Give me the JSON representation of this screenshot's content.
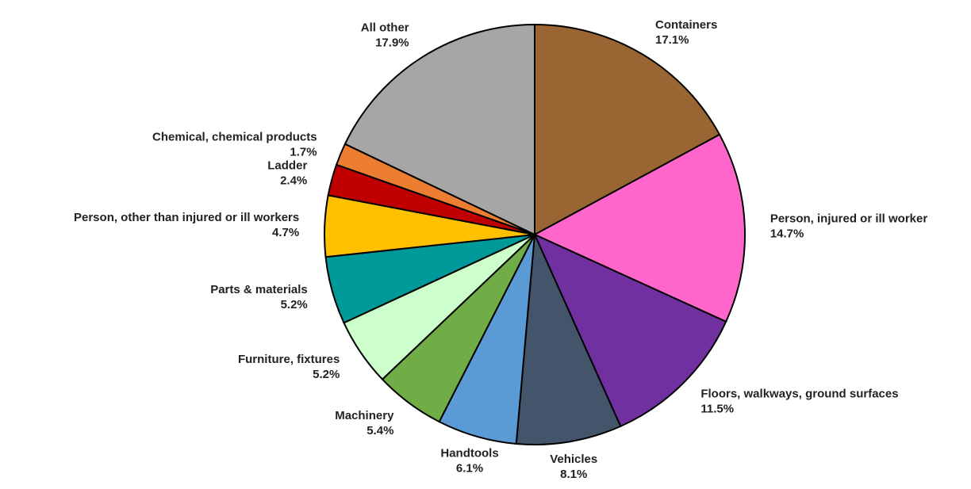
{
  "chart_data": {
    "type": "pie",
    "categories": [
      "Containers",
      "Person, injured or ill worker",
      "Floors, walkways, ground surfaces",
      "Vehicles",
      "Handtools",
      "Machinery",
      "Furniture, fixtures",
      "Parts & materials",
      "Person, other than injured or ill workers",
      "Ladder",
      "Chemical, chemical products",
      "All other"
    ],
    "values": [
      17.1,
      14.7,
      11.5,
      8.1,
      6.1,
      5.4,
      5.2,
      5.2,
      4.7,
      2.4,
      1.7,
      17.9
    ],
    "value_labels": [
      "17.1%",
      "14.7%",
      "11.5%",
      "8.1%",
      "6.1%",
      "5.4%",
      "5.2%",
      "5.2%",
      "4.7%",
      "2.4%",
      "1.7%",
      "17.9%"
    ],
    "colors": [
      "#996633",
      "#ff66cc",
      "#7030a0",
      "#44546a",
      "#5b9bd5",
      "#70ad47",
      "#ccffcc",
      "#009999",
      "#ffc000",
      "#c00000",
      "#ed7d31",
      "#a6a6a6"
    ]
  }
}
